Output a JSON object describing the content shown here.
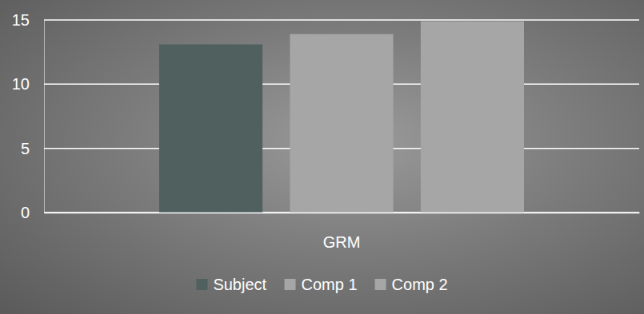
{
  "chart_data": {
    "type": "bar",
    "categories": [
      "GRM"
    ],
    "series": [
      {
        "name": "Subject",
        "color": "#4f605f",
        "values": [
          13.1
        ]
      },
      {
        "name": "Comp 1",
        "color": "#a6a6a6",
        "values": [
          13.9
        ]
      },
      {
        "name": "Comp 2",
        "color": "#a6a6a6",
        "values": [
          14.9
        ]
      }
    ],
    "ylim": [
      0,
      15
    ],
    "yticks": [
      0,
      5,
      10,
      15
    ],
    "grid": true,
    "legend": "bottom"
  }
}
